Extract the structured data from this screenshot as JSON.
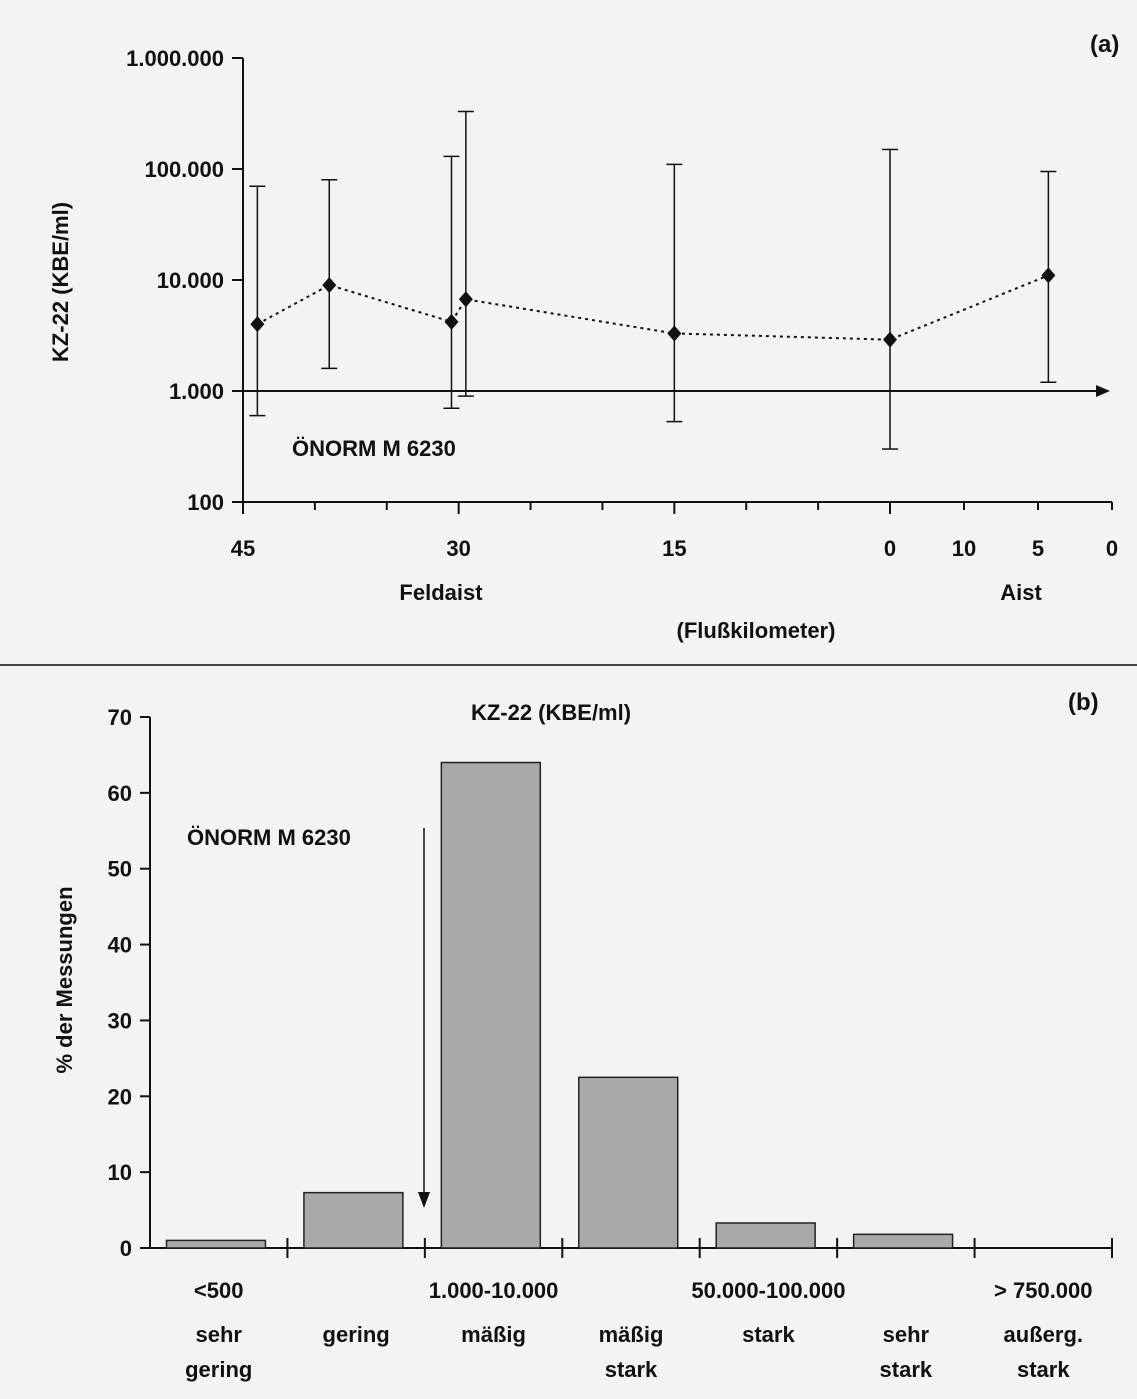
{
  "chart_data": [
    {
      "type": "line",
      "panel_label": "(a)",
      "ylabel": "KZ-22 (KBE/ml)",
      "yscale": "log",
      "ylim": [
        100,
        1000000
      ],
      "y_ticks": [
        "100",
        "1.000",
        "10.000",
        "100.000",
        "1.000.000"
      ],
      "y_tick_values": [
        100,
        1000,
        10000,
        100000,
        1000000
      ],
      "reference_line": {
        "label": "ÖNORM M 6230",
        "value": 1000
      },
      "x_ticks_feldaist": [
        "45",
        "30",
        "15",
        "0"
      ],
      "x_ticks_aist": [
        "10",
        "5",
        "0"
      ],
      "x_group_labels": [
        "Feldaist",
        "Aist"
      ],
      "xlabel": "(Flußkilometer)",
      "series": [
        {
          "river": "Feldaist",
          "points": [
            {
              "km": 44,
              "y": 4000,
              "low": 600,
              "high": 70000
            },
            {
              "km": 39,
              "y": 9000,
              "low": 1600,
              "high": 80000
            },
            {
              "km": 30.5,
              "y": 4200,
              "low": 700,
              "high": 130000
            },
            {
              "km": 29.5,
              "y": 6700,
              "low": 900,
              "high": 330000
            },
            {
              "km": 15,
              "y": 3300,
              "low": 530,
              "high": 110000
            },
            {
              "km": 0,
              "y": 2900,
              "low": 300,
              "high": 150000
            }
          ]
        },
        {
          "river": "Aist",
          "points": [
            {
              "km": 4.3,
              "y": 11000,
              "low": 1200,
              "high": 95000
            }
          ]
        }
      ]
    },
    {
      "type": "bar",
      "panel_label": "(b)",
      "title": "KZ-22 (KBE/ml)",
      "ylabel": "% der Messungen",
      "ylim": [
        0,
        70
      ],
      "y_ticks": [
        "0",
        "10",
        "20",
        "30",
        "40",
        "50",
        "60",
        "70"
      ],
      "annotation": "ÖNORM M 6230",
      "range_labels": [
        "<500",
        "1.000-10.000",
        "50.000-100.000",
        "> 750.000"
      ],
      "categories": [
        {
          "line1": "sehr",
          "line2": "gering"
        },
        {
          "line1": "gering",
          "line2": ""
        },
        {
          "line1": "mäßig",
          "line2": ""
        },
        {
          "line1": "mäßig",
          "line2": "stark"
        },
        {
          "line1": "stark",
          "line2": ""
        },
        {
          "line1": "sehr",
          "line2": "stark"
        },
        {
          "line1": "außerg.",
          "line2": "stark"
        }
      ],
      "values": [
        1,
        7.3,
        64,
        22.5,
        3.3,
        1.8,
        0
      ]
    }
  ]
}
